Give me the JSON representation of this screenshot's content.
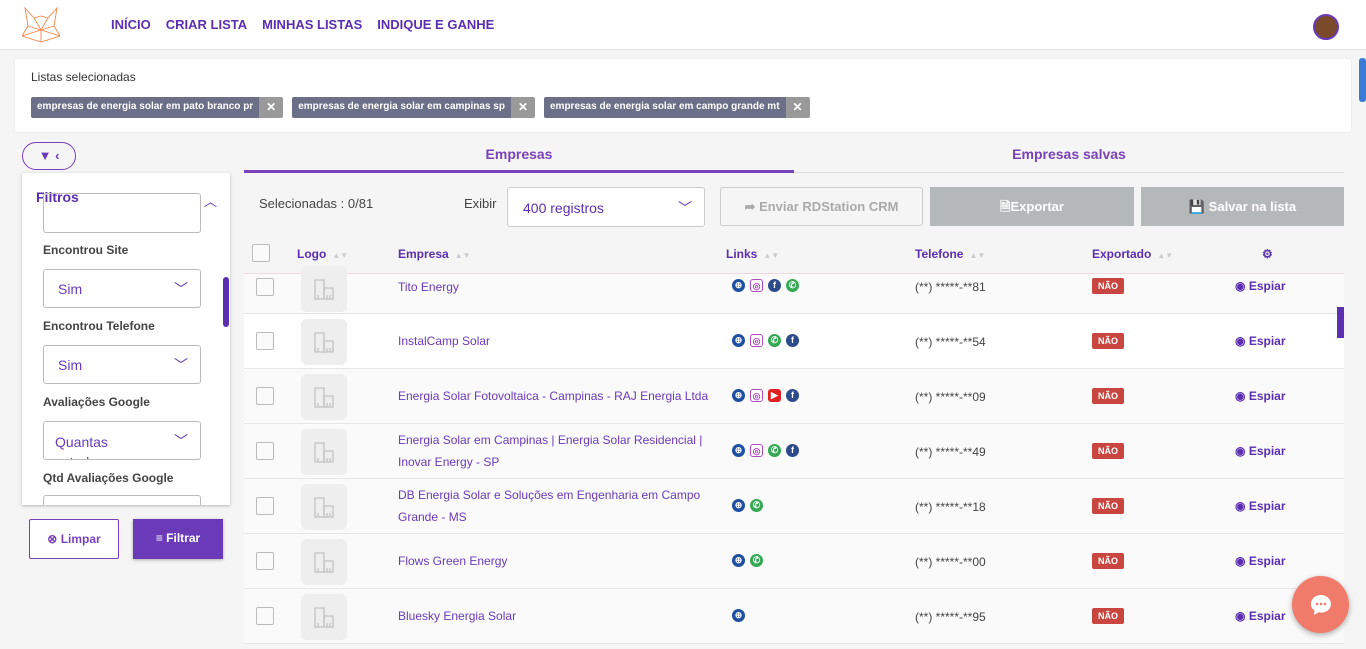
{
  "nav": {
    "items": [
      "INÍCIO",
      "CRIAR LISTA",
      "MINHAS LISTAS",
      "INDIQUE E GANHE"
    ]
  },
  "lists": {
    "title": "Listas selecionadas",
    "chips": [
      "empresas de energia solar em pato branco pr",
      "empresas de energia solar em campinas sp",
      "empresas de energia solar em campo grande mt"
    ]
  },
  "filters": {
    "title": "Filtros",
    "fields": [
      {
        "label": "Encontrou Site",
        "value": "Sim"
      },
      {
        "label": "Encontrou Telefone",
        "value": "Sim"
      },
      {
        "label": "Avaliações Google",
        "value": "Quantas estrelas"
      },
      {
        "label": "Qtd Avaliações Google",
        "value": ""
      }
    ],
    "clear_label": "Limpar",
    "apply_label": "Filtrar"
  },
  "tabs": [
    "Empresas",
    "Empresas salvas"
  ],
  "toolbar": {
    "selected": "Selecionadas : 0/81",
    "show_label": "Exibir",
    "show_value": "400 registros",
    "rd_label": "Enviar RDStation CRM",
    "export_label": "Exportar",
    "save_label": "Salvar na lista"
  },
  "table": {
    "headers": {
      "logo": "Logo",
      "empresa": "Empresa",
      "links": "Links",
      "telefone": "Telefone",
      "exportado": "Exportado"
    },
    "rows": [
      {
        "empresa": "Tito Energy",
        "links": [
          "globe",
          "instagram",
          "facebook",
          "whatsapp"
        ],
        "telefone": "(**) *****-**81",
        "exportado": "NÃO",
        "action": "Espiar"
      },
      {
        "empresa": "InstalCamp Solar",
        "links": [
          "globe",
          "instagram",
          "whatsapp",
          "facebook"
        ],
        "telefone": "(**) *****-**54",
        "exportado": "NÃO",
        "action": "Espiar"
      },
      {
        "empresa": "Energia Solar Fotovoltaica - Campinas - RAJ Energia Ltda",
        "links": [
          "globe",
          "instagram",
          "youtube",
          "facebook"
        ],
        "telefone": "(**) *****-**09",
        "exportado": "NÃO",
        "action": "Espiar"
      },
      {
        "empresa": "Energia Solar em Campinas | Energia Solar Residencial | Inovar Energy - SP",
        "links": [
          "globe",
          "instagram",
          "whatsapp",
          "facebook"
        ],
        "telefone": "(**) *****-**49",
        "exportado": "NÃO",
        "action": "Espiar"
      },
      {
        "empresa": "DB Energia Solar e Soluções em Engenharia em Campo Grande - MS",
        "links": [
          "globe",
          "whatsapp"
        ],
        "telefone": "(**) *****-**18",
        "exportado": "NÃO",
        "action": "Espiar"
      },
      {
        "empresa": "Flows Green Energy",
        "links": [
          "globe",
          "whatsapp"
        ],
        "telefone": "(**) *****-**00",
        "exportado": "NÃO",
        "action": "Espiar"
      },
      {
        "empresa": "Bluesky Energia Solar",
        "links": [
          "globe"
        ],
        "telefone": "(**) *****-**95",
        "exportado": "NÃO",
        "action": "Espiar"
      }
    ]
  },
  "colors": {
    "accent": "#5b2fb0",
    "badge": "#c9453f",
    "chip": "#6b6f87"
  }
}
